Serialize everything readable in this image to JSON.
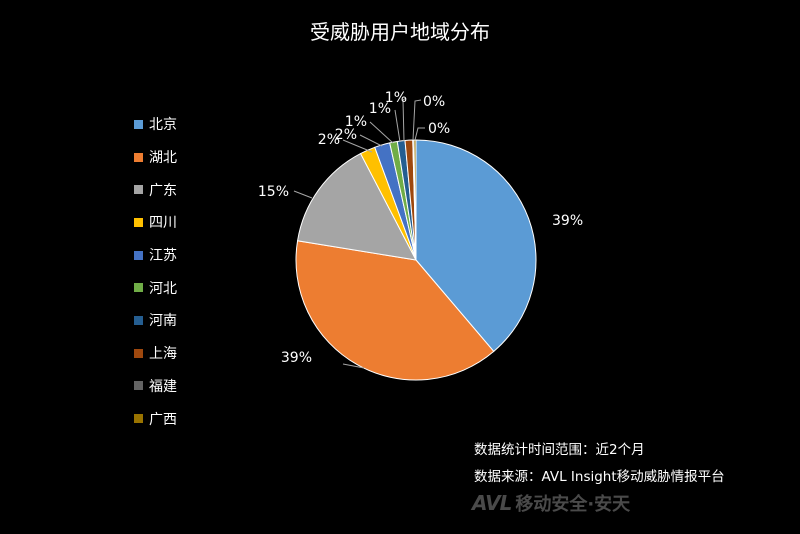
{
  "chart_data": {
    "type": "pie",
    "title": "受威胁用户地域分布",
    "categories": [
      "北京",
      "湖北",
      "广东",
      "四川",
      "江苏",
      "河北",
      "河南",
      "上海",
      "福建",
      "广西"
    ],
    "values": [
      39,
      39,
      15,
      2,
      2,
      1,
      1,
      1,
      0,
      0
    ],
    "data_labels": [
      "39%",
      "39%",
      "15%",
      "2%",
      "2%",
      "1%",
      "1%",
      "1%",
      "0%",
      "0%"
    ],
    "colors": [
      "#5b9bd5",
      "#ed7d31",
      "#a5a5a5",
      "#ffc000",
      "#4472c4",
      "#70ad47",
      "#255e91",
      "#9e480e",
      "#636363",
      "#997300"
    ],
    "legend_position": "left"
  },
  "notes": {
    "period": "数据统计时间范围：近2个月",
    "source": "数据来源：AVL Insight移动威胁情报平台"
  },
  "watermark": {
    "logo": "AVL",
    "text": "移动安全·安天"
  }
}
